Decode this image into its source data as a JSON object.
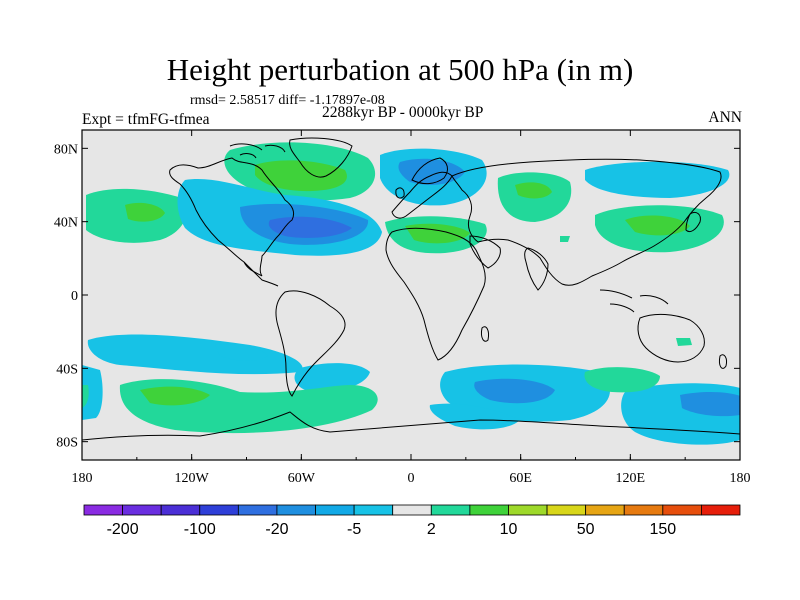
{
  "title": "Height perturbation at 500 hPa (in m)",
  "stats": "rmsd= 2.58517 diff= -1.17897e-08",
  "experiment": "Expt = tfmFG-tfmea",
  "period": "2288kyr BP - 0000kyr BP",
  "season": "ANN",
  "x_ticks": [
    "180",
    "120W",
    "60W",
    "0",
    "60E",
    "120E",
    "180"
  ],
  "y_ticks": [
    "80N",
    "40N",
    "0",
    "40S",
    "80S"
  ],
  "colorbar": {
    "labels": [
      "-200",
      "-100",
      "-20",
      "-5",
      "2",
      "10",
      "50",
      "150"
    ],
    "colors": [
      "#8a2be2",
      "#6a2ee0",
      "#4b2fd6",
      "#2e3fd8",
      "#2f6fe0",
      "#1f8fe0",
      "#12a9e6",
      "#17c2e6",
      "#e6e6e6",
      "#22d89a",
      "#3fd23a",
      "#9ed92a",
      "#d8d61a",
      "#e6a514",
      "#e67a10",
      "#e64e0c",
      "#e61e0a"
    ]
  },
  "map": {
    "background_color": "#e6e6e6",
    "palette": {
      "blue_light": "#17c2e6",
      "blue_mid": "#1f8fe0",
      "blue_dark": "#2f6fe0",
      "green_light": "#22d89a",
      "green_mid": "#3fd23a"
    }
  }
}
